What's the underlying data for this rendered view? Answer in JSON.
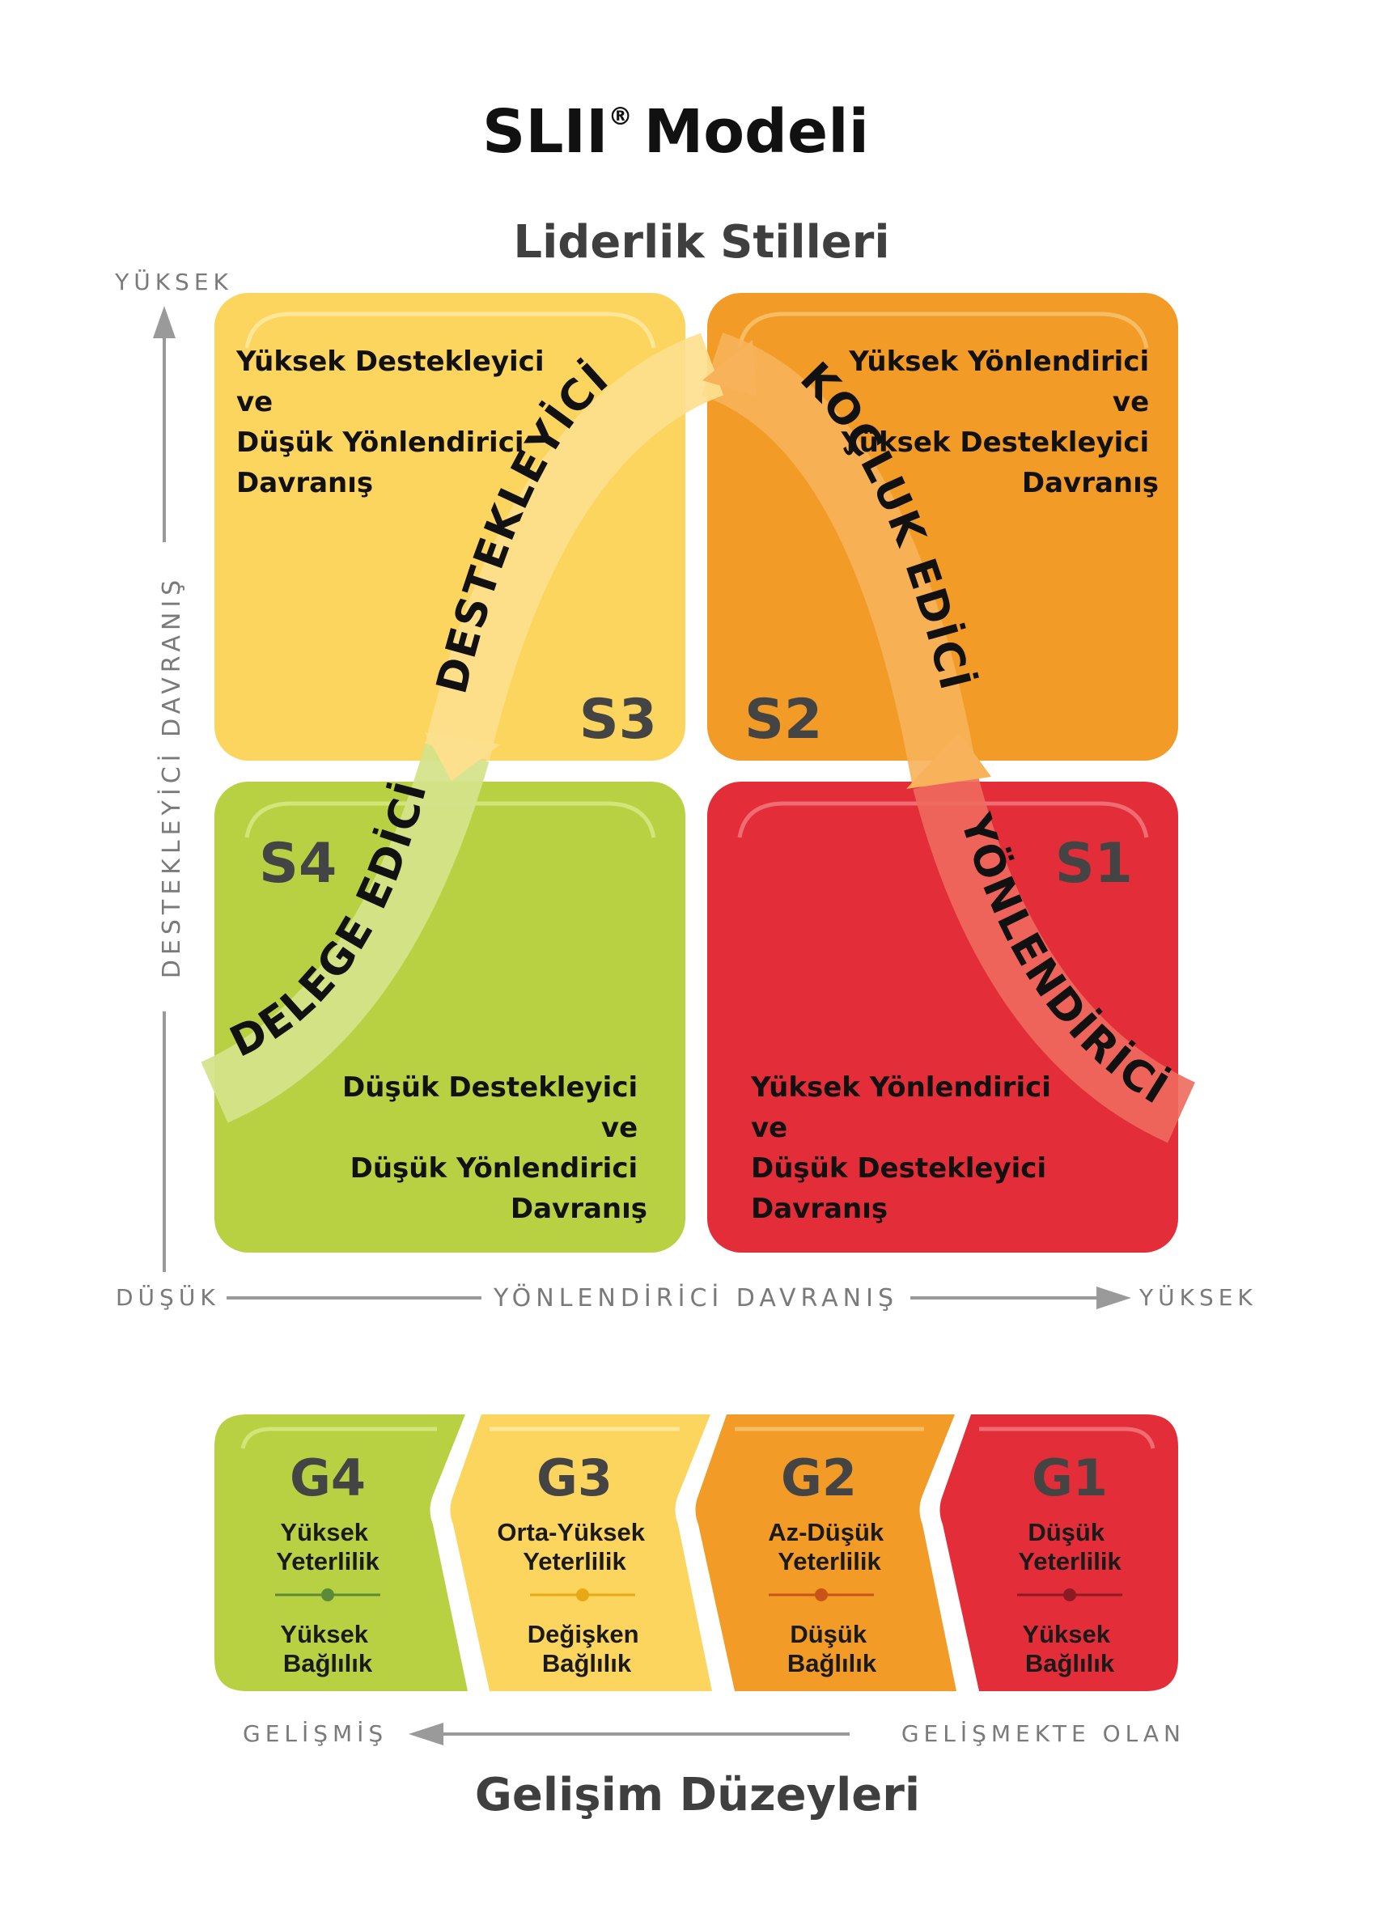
{
  "title": "SLII",
  "title_mark": "®",
  "title_rest": "Modeli",
  "section_top": "Liderlik Stilleri",
  "section_bottom": "Gelişim Düzeyleri",
  "axis": {
    "y_high": "YÜKSEK",
    "y_label": "DESTEKLEYİCİ DAVRANIŞ",
    "x_low": "DÜŞÜK",
    "x_label": "YÖNLENDİRİCİ DAVRANIŞ",
    "x_high": "YÜKSEK",
    "dev_left": "GELİŞMİŞ",
    "dev_right": "GELİŞMEKTE OLAN"
  },
  "quadrants": {
    "s3": {
      "code": "S3",
      "color": "#fcd55f",
      "lines": [
        "Yüksek Destekleyici",
        "ve",
        "Düşük Yönlendirici",
        "Davranış"
      ]
    },
    "s2": {
      "code": "S2",
      "color": "#f29b26",
      "lines": [
        "Yüksek Yönlendirici",
        "ve",
        "Yüksek Destekleyici",
        "Davranış"
      ]
    },
    "s4": {
      "code": "S4",
      "color": "#b8d143",
      "lines": [
        "Düşük Destekleyici",
        "ve",
        "Düşük Yönlendirici",
        "Davranış"
      ]
    },
    "s1": {
      "code": "S1",
      "color": "#e32d38",
      "lines": [
        "Yüksek Yönlendirici",
        "ve",
        "Düşük Destekleyici",
        "Davranış"
      ]
    }
  },
  "styles": {
    "s1": "YÖNLENDİRİCİ",
    "s2": "KOÇLUK EDİCİ",
    "s3": "DESTEKLEYİCİ",
    "s4": "DELEGE EDİCİ"
  },
  "levels": [
    {
      "code": "G4",
      "color": "#b8d143",
      "dot": "#5b8a3a",
      "competence": [
        "Yüksek",
        "Yeterlilik"
      ],
      "commitment": [
        "Yüksek",
        "Bağlılık"
      ]
    },
    {
      "code": "G3",
      "color": "#fcd55f",
      "dot": "#e8a915",
      "competence": [
        "Orta-Yüksek",
        "Yeterlilik"
      ],
      "commitment": [
        "Değişken",
        "Bağlılık"
      ]
    },
    {
      "code": "G2",
      "color": "#f29b26",
      "dot": "#c8541a",
      "competence": [
        "Az-Düşük",
        "Yeterlilik"
      ],
      "commitment": [
        "Düşük",
        "Bağlılık"
      ]
    },
    {
      "code": "G1",
      "color": "#e32d38",
      "dot": "#8c1a22",
      "competence": [
        "Düşük",
        "Yeterlilik"
      ],
      "commitment": [
        "Yüksek",
        "Bağlılık"
      ]
    }
  ]
}
